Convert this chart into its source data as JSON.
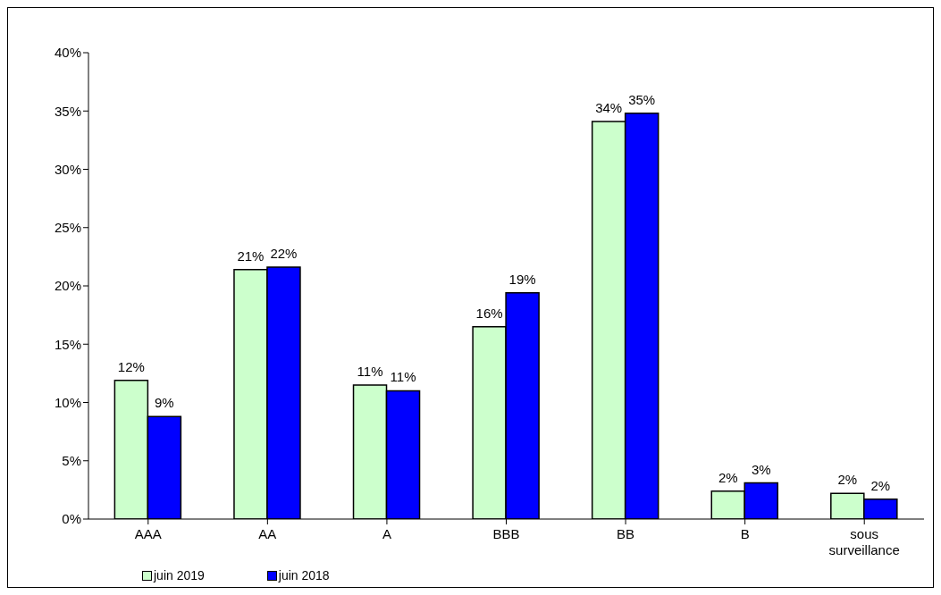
{
  "chart_data": {
    "type": "bar",
    "categories": [
      "AAA",
      "AA",
      "A",
      "BBB",
      "BB",
      "B",
      "sous surveillance"
    ],
    "series": [
      {
        "name": "juin 2019",
        "color": "#ccffcc",
        "values": [
          11.9,
          21.4,
          11.5,
          16.5,
          34.1,
          2.4,
          2.2
        ],
        "value_labels": [
          "12%",
          "21%",
          "11%",
          "16%",
          "34%",
          "2%",
          "2%"
        ]
      },
      {
        "name": "juin 2018",
        "color": "#0000ff",
        "values": [
          8.8,
          21.6,
          11.0,
          19.4,
          34.8,
          3.1,
          1.7
        ],
        "value_labels": [
          "9%",
          "22%",
          "11%",
          "19%",
          "35%",
          "3%",
          "2%"
        ]
      }
    ],
    "ylim": [
      0,
      40
    ],
    "yticks": [
      {
        "value": 0,
        "label": "0%"
      },
      {
        "value": 5,
        "label": "5%"
      },
      {
        "value": 10,
        "label": "10%"
      },
      {
        "value": 15,
        "label": "15%"
      },
      {
        "value": 20,
        "label": "20%"
      },
      {
        "value": 25,
        "label": "25%"
      },
      {
        "value": 30,
        "label": "30%"
      },
      {
        "value": 35,
        "label": "35%"
      },
      {
        "value": 40,
        "label": "40%"
      }
    ],
    "grid": false,
    "legend": "bottom left"
  }
}
